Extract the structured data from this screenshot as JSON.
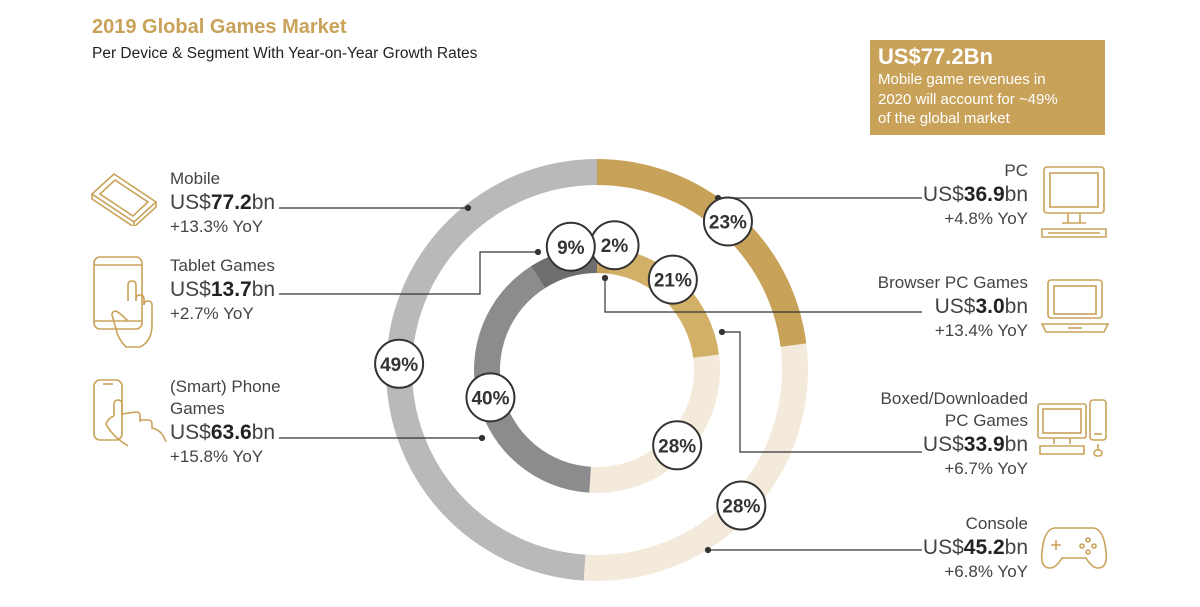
{
  "header": {
    "title": "2019 Global Games Market",
    "subtitle": "Per Device & Segment With Year-on-Year Growth Rates"
  },
  "callout": {
    "headline": "US$77.2Bn",
    "lines": [
      "Mobile game revenues in",
      "2020 will account for ~49%",
      "of the global market"
    ]
  },
  "colors": {
    "accent": "#c9a25a",
    "light_beige": "#f3eadb",
    "grey": "#b9b9bc",
    "dark_grey": "#8c8c8f",
    "darker_grey": "#6e6e71",
    "label_circle_border": "#333333"
  },
  "segments": {
    "mobile": {
      "name": "Mobile",
      "prefix": "US$",
      "value": "77.2",
      "suffix": "bn",
      "yoy": "+13.3% YoY",
      "icon": "tablet-landscape-icon"
    },
    "tablet": {
      "name": "Tablet Games",
      "prefix": "US$",
      "value": "13.7",
      "suffix": "bn",
      "yoy": "+2.7% YoY",
      "icon": "tablet-touch-icon"
    },
    "phone": {
      "name_line1": "(Smart) Phone",
      "name_line2": "Games",
      "prefix": "US$",
      "value": "63.6",
      "suffix": "bn",
      "yoy": "+15.8% YoY",
      "icon": "phone-touch-icon"
    },
    "pc": {
      "name": "PC",
      "prefix": "US$",
      "value": "36.9",
      "suffix": "bn",
      "yoy": "+4.8% YoY",
      "icon": "desktop-computer-icon"
    },
    "browser": {
      "name": "Browser PC Games",
      "prefix": "US$",
      "value": "3.0",
      "suffix": "bn",
      "yoy": "+13.4% YoY",
      "icon": "laptop-icon"
    },
    "boxed": {
      "name_line1": "Boxed/Downloaded",
      "name_line2": "PC Games",
      "prefix": "US$",
      "value": "33.9",
      "suffix": "bn",
      "yoy": "+6.7% YoY",
      "icon": "desktop-and-phone-icon"
    },
    "console": {
      "name": "Console",
      "prefix": "US$",
      "value": "45.2",
      "suffix": "bn",
      "yoy": "+6.8% YoY",
      "icon": "gamepad-icon"
    }
  },
  "chart_data": {
    "type": "pie",
    "style": "nested-donut",
    "title": "2019 Global Games Market",
    "subtitle": "Per Device & Segment With Year-on-Year Growth Rates",
    "outer_ring": [
      {
        "name": "PC",
        "percent": 23,
        "label": "23%",
        "value": 36.9,
        "color": "#c9a25a"
      },
      {
        "name": "Console",
        "percent": 28,
        "label": "28%",
        "value": 45.2,
        "color": "#f3eadb"
      },
      {
        "name": "Mobile",
        "percent": 49,
        "label": "49%",
        "value": 77.2,
        "color": "#b9b9bc"
      }
    ],
    "inner_ring": [
      {
        "name": "Browser PC Games",
        "percent": 2,
        "label": "2%",
        "value": 3.0,
        "color": "#c9a25a"
      },
      {
        "name": "Boxed/Downloaded PC Games",
        "percent": 21,
        "label": "21%",
        "value": 33.9,
        "color": "#d3b068"
      },
      {
        "name": "Console",
        "percent": 28,
        "label": "28%",
        "value": 45.2,
        "color": "#f3eadb"
      },
      {
        "name": "(Smart) Phone Games",
        "percent": 40,
        "label": "40%",
        "value": 63.6,
        "color": "#8c8c8f"
      },
      {
        "name": "Tablet Games",
        "percent": 9,
        "label": "9%",
        "value": 13.7,
        "color": "#6e6e71"
      }
    ]
  }
}
